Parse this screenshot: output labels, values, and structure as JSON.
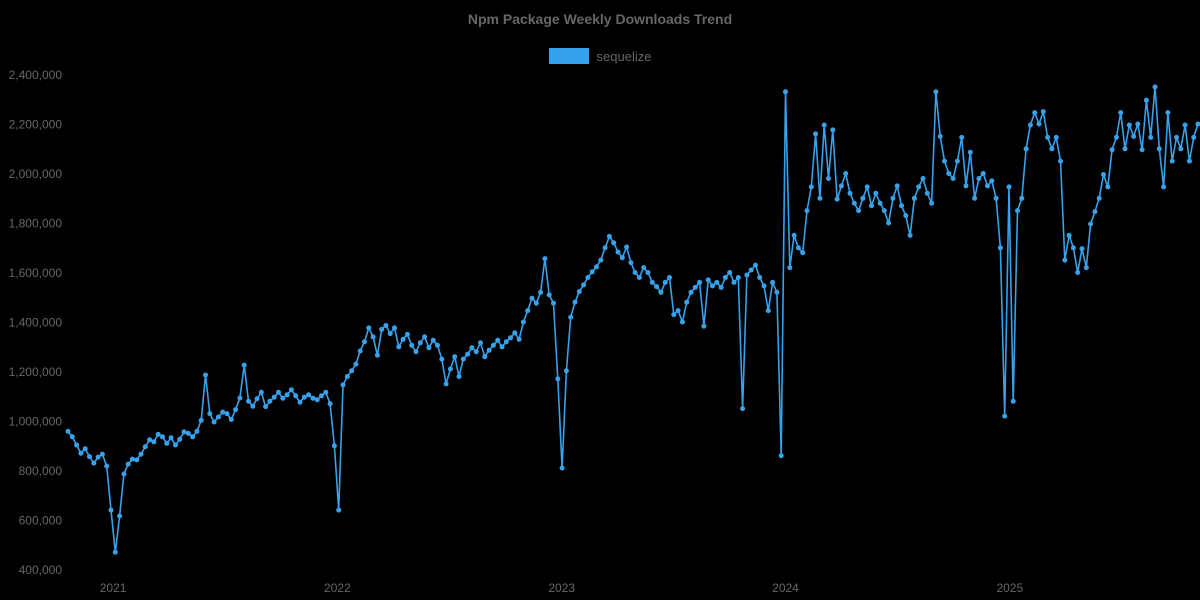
{
  "chart": {
    "title": "Npm Package Weekly Downloads Trend",
    "legend": {
      "items": [
        {
          "label": "sequelize",
          "color": "#36a2eb"
        }
      ]
    }
  },
  "colors": {
    "background": "#000000",
    "text": "#666666",
    "line": "#36a2eb"
  },
  "chart_data": {
    "type": "line",
    "title": "Npm Package Weekly Downloads Trend",
    "xlabel": "",
    "ylabel": "",
    "ylim": [
      400000,
      2400000
    ],
    "yticks": [
      400000,
      600000,
      800000,
      1000000,
      1200000,
      1400000,
      1600000,
      1800000,
      2000000,
      2200000,
      2400000
    ],
    "x_ticks": [
      {
        "label": "2021",
        "pos": 10.5
      },
      {
        "label": "2022",
        "pos": 62.7
      },
      {
        "label": "2023",
        "pos": 114.9
      },
      {
        "label": "2024",
        "pos": 167.0
      },
      {
        "label": "2025",
        "pos": 219.2
      }
    ],
    "x_unit": "week",
    "grid": false,
    "legend_position": "top-center",
    "marker": "circle",
    "series": [
      {
        "name": "sequelize",
        "color": "#36a2eb",
        "values": [
          960000,
          938000,
          905000,
          872000,
          890000,
          858000,
          832000,
          856000,
          868000,
          820000,
          642000,
          472000,
          618000,
          788000,
          828000,
          848000,
          845000,
          868000,
          898000,
          926000,
          918000,
          948000,
          938000,
          912000,
          934000,
          905000,
          928000,
          958000,
          952000,
          938000,
          960000,
          1005000,
          1188000,
          1032000,
          998000,
          1018000,
          1038000,
          1032000,
          1008000,
          1048000,
          1095000,
          1228000,
          1082000,
          1062000,
          1092000,
          1118000,
          1060000,
          1082000,
          1098000,
          1118000,
          1094000,
          1108000,
          1128000,
          1104000,
          1078000,
          1098000,
          1108000,
          1094000,
          1088000,
          1104000,
          1118000,
          1072000,
          902000,
          642000,
          1148000,
          1182000,
          1205000,
          1232000,
          1285000,
          1322000,
          1378000,
          1342000,
          1268000,
          1372000,
          1388000,
          1355000,
          1378000,
          1302000,
          1332000,
          1352000,
          1308000,
          1282000,
          1318000,
          1342000,
          1298000,
          1328000,
          1308000,
          1252000,
          1152000,
          1212000,
          1262000,
          1182000,
          1252000,
          1272000,
          1298000,
          1282000,
          1318000,
          1262000,
          1288000,
          1308000,
          1328000,
          1302000,
          1322000,
          1338000,
          1358000,
          1332000,
          1402000,
          1448000,
          1498000,
          1478000,
          1522000,
          1658000,
          1512000,
          1478000,
          1172000,
          812000,
          1205000,
          1422000,
          1482000,
          1525000,
          1552000,
          1582000,
          1605000,
          1625000,
          1652000,
          1702000,
          1748000,
          1722000,
          1685000,
          1662000,
          1705000,
          1642000,
          1602000,
          1582000,
          1622000,
          1602000,
          1562000,
          1545000,
          1522000,
          1562000,
          1582000,
          1432000,
          1448000,
          1402000,
          1482000,
          1522000,
          1542000,
          1562000,
          1385000,
          1572000,
          1548000,
          1562000,
          1542000,
          1582000,
          1602000,
          1562000,
          1582000,
          1052000,
          1592000,
          1612000,
          1632000,
          1582000,
          1548000,
          1448000,
          1562000,
          1522000,
          862000,
          2332000,
          1622000,
          1752000,
          1702000,
          1682000,
          1852000,
          1948000,
          2162000,
          1902000,
          2198000,
          1982000,
          2178000,
          1898000,
          1952000,
          2002000,
          1922000,
          1882000,
          1852000,
          1902000,
          1948000,
          1872000,
          1922000,
          1882000,
          1852000,
          1802000,
          1902000,
          1952000,
          1872000,
          1832000,
          1752000,
          1902000,
          1948000,
          1982000,
          1922000,
          1882000,
          2332000,
          2152000,
          2052000,
          2002000,
          1982000,
          2052000,
          2148000,
          1952000,
          2088000,
          1902000,
          1982000,
          2002000,
          1952000,
          1972000,
          1902000,
          1702000,
          1022000,
          1948000,
          1082000,
          1852000,
          1902000,
          2102000,
          2198000,
          2248000,
          2202000,
          2252000,
          2148000,
          2102000,
          2148000,
          2052000,
          1652000,
          1752000,
          1702000,
          1602000,
          1698000,
          1622000,
          1798000,
          1848000,
          1902000,
          1998000,
          1948000,
          2098000,
          2148000,
          2248000,
          2102000,
          2198000,
          2152000,
          2202000,
          2098000,
          2298000,
          2148000,
          2352000,
          2102000,
          1948000,
          2248000,
          2052000,
          2148000,
          2102000,
          2198000,
          2052000,
          2148000,
          2202000
        ]
      }
    ]
  }
}
